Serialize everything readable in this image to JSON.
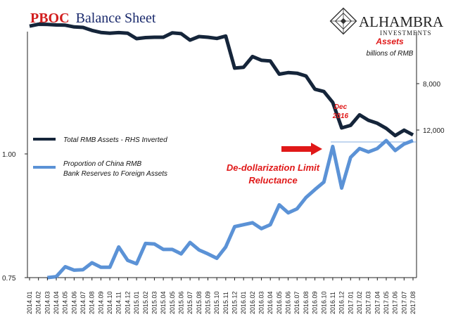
{
  "title": {
    "prefix": "PBOC",
    "rest": "Balance Sheet"
  },
  "logo": {
    "name": "ALHAMBRA",
    "sub": "INVESTMENTS"
  },
  "right_axis": {
    "title": "Assets",
    "subtitle": "billions of RMB",
    "ticks": [
      "8,000",
      "12,000"
    ]
  },
  "left_axis": {
    "ticks": [
      "1.00",
      "0.75"
    ]
  },
  "legend": {
    "assets": "Total RMB Assets - RHS Inverted",
    "proportion_line1": "Proportion  of China RMB",
    "proportion_line2": "Bank Reserves to Foreign Assets"
  },
  "annotations": {
    "dec_line1": "Dec",
    "dec_line2": "2016",
    "dedollar_line1": "De-dollarization Limit",
    "dedollar_line2": "Reluctance"
  },
  "colors": {
    "assets": "#15253a",
    "proportion": "#5b92d6",
    "accent_red": "#e01818",
    "title_blue": "#1a2a6c"
  },
  "chart_data": {
    "type": "line",
    "categories": [
      "2014.01",
      "2014.02",
      "2014.03",
      "2014.04",
      "2014.05",
      "2014.06",
      "2014.07",
      "2014.08",
      "2014.09",
      "2014.10",
      "2014.11",
      "2014.12",
      "2015.01",
      "2015.02",
      "2015.03",
      "2015.04",
      "2015.05",
      "2015.06",
      "2015.07",
      "2015.08",
      "2015.09",
      "2015.10",
      "2015.11",
      "2015.12",
      "2016.01",
      "2016.02",
      "2016.03",
      "2016.04",
      "2016.05",
      "2016.06",
      "2016.07",
      "2016.08",
      "2016.09",
      "2016.10",
      "2016.11",
      "2016.12",
      "2017.01",
      "2017.02",
      "2017.03",
      "2017.04",
      "2017.05",
      "2017.06",
      "2017.07",
      "2017.08"
    ],
    "series": [
      {
        "name": "Total RMB Assets - RHS Inverted",
        "axis": "right",
        "inverted": true,
        "values": [
          3040,
          2880,
          2900,
          2940,
          2960,
          3110,
          3150,
          3410,
          3590,
          3650,
          3600,
          3650,
          4120,
          4030,
          4000,
          4000,
          3620,
          3690,
          4250,
          3940,
          4000,
          4100,
          3900,
          6660,
          6590,
          5660,
          5980,
          6050,
          7180,
          7050,
          7100,
          7340,
          8480,
          8680,
          9620,
          11820,
          11600,
          10690,
          11160,
          11420,
          11860,
          12480,
          12010,
          12420
        ]
      },
      {
        "name": "Proportion of China RMB Bank Reserves to Foreign Assets",
        "axis": "left",
        "values": [
          0.725,
          0.735,
          0.745,
          0.752,
          0.772,
          0.765,
          0.766,
          0.78,
          0.771,
          0.771,
          0.812,
          0.785,
          0.778,
          0.819,
          0.818,
          0.807,
          0.807,
          0.798,
          0.821,
          0.806,
          0.798,
          0.789,
          0.812,
          0.853,
          0.857,
          0.861,
          0.849,
          0.857,
          0.897,
          0.881,
          0.889,
          0.912,
          0.928,
          0.943,
          1.015,
          0.931,
          0.993,
          1.011,
          1.004,
          1.011,
          1.027,
          1.007,
          1.02,
          1.027
        ]
      }
    ],
    "left_axis": {
      "ticks": [
        0.75,
        1.0
      ]
    },
    "right_axis": {
      "ticks": [
        8000,
        12000
      ],
      "inverted": true
    },
    "grid": false,
    "legend_placement": "left"
  }
}
